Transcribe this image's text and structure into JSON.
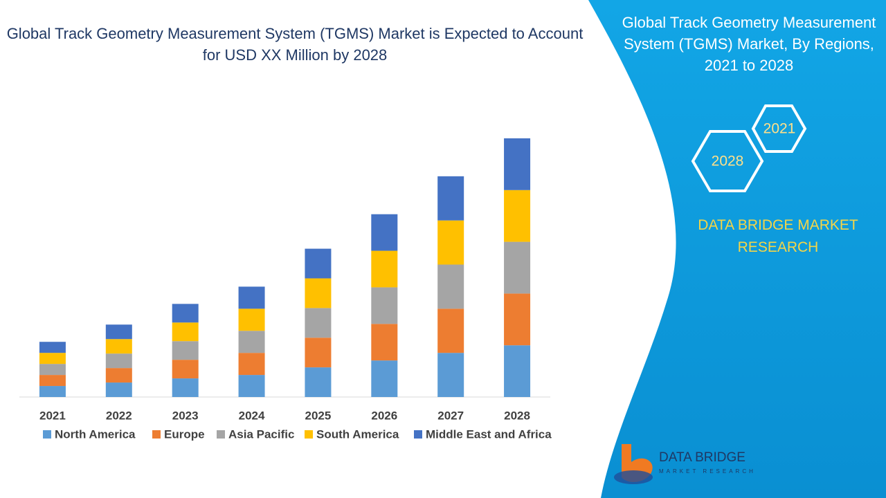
{
  "chart_data": {
    "type": "stacked-bar",
    "title": "Global Track Geometry Measurement System (TGMS) Market is Expected to Account for USD XX Million by 2028",
    "categories": [
      "2021",
      "2022",
      "2023",
      "2024",
      "2025",
      "2026",
      "2027",
      "2028"
    ],
    "series": [
      {
        "name": "North America",
        "color": "#5b9bd5",
        "values": [
          16,
          21,
          27,
          32,
          43,
          53,
          64,
          75
        ]
      },
      {
        "name": "Europe",
        "color": "#ed7d31",
        "values": [
          16,
          21,
          27,
          32,
          43,
          53,
          64,
          75
        ]
      },
      {
        "name": "Asia Pacific",
        "color": "#a5a5a5",
        "values": [
          16,
          21,
          27,
          32,
          43,
          53,
          64,
          75
        ]
      },
      {
        "name": "South America",
        "color": "#ffc000",
        "values": [
          16,
          21,
          27,
          32,
          43,
          53,
          64,
          75
        ]
      },
      {
        "name": "Middle East and Africa",
        "color": "#4472c4",
        "values": [
          16,
          21,
          27,
          32,
          43,
          53,
          64,
          75
        ]
      }
    ],
    "legend": "bottom"
  },
  "panel": {
    "title": "Global Track Geometry Measurement System (TGMS) Market, By Regions, 2021 to 2028",
    "hex_start": "2021",
    "hex_end": "2028",
    "brand": "DATA BRIDGE MARKET RESEARCH",
    "logo_name": "DATA BRIDGE",
    "logo_sub": "MARKET RESEARCH"
  }
}
